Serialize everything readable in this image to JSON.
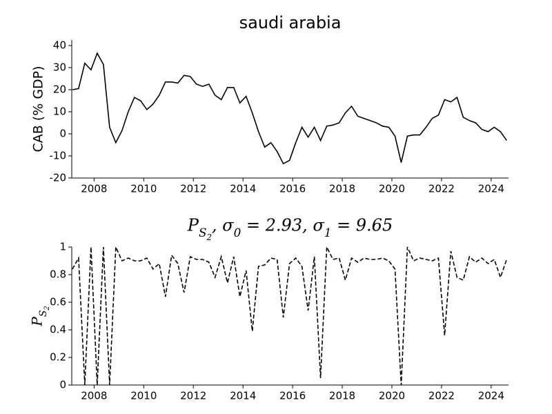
{
  "chart_data": [
    {
      "type": "line",
      "title": "saudi arabia",
      "ylabel": "CAB (% GDP)",
      "x": [
        2007.125,
        2007.375,
        2007.625,
        2007.875,
        2008.125,
        2008.375,
        2008.625,
        2008.875,
        2009.125,
        2009.375,
        2009.625,
        2009.875,
        2010.125,
        2010.375,
        2010.625,
        2010.875,
        2011.125,
        2011.375,
        2011.625,
        2011.875,
        2012.125,
        2012.375,
        2012.625,
        2012.875,
        2013.125,
        2013.375,
        2013.625,
        2013.875,
        2014.125,
        2014.375,
        2014.625,
        2014.875,
        2015.125,
        2015.375,
        2015.625,
        2015.875,
        2016.125,
        2016.375,
        2016.625,
        2016.875,
        2017.125,
        2017.375,
        2017.625,
        2017.875,
        2018.125,
        2018.375,
        2018.625,
        2018.875,
        2019.125,
        2019.375,
        2019.625,
        2019.875,
        2020.125,
        2020.375,
        2020.625,
        2020.875,
        2021.125,
        2021.375,
        2021.625,
        2021.875,
        2022.125,
        2022.375,
        2022.625,
        2022.875,
        2023.125,
        2023.375,
        2023.625,
        2023.875,
        2024.125,
        2024.375,
        2024.625
      ],
      "series": [
        {
          "color": "#000000",
          "linestyle": "solid",
          "values": [
            20,
            20.5,
            32,
            29,
            36.5,
            31.5,
            3,
            -4,
            1.5,
            10,
            16.5,
            15,
            11,
            13.5,
            17.5,
            23.5,
            23.5,
            23,
            26.5,
            26,
            22.5,
            21.5,
            22.5,
            17.5,
            15.5,
            21,
            21,
            14,
            17,
            9.5,
            1,
            -6,
            -4,
            -8,
            -13.5,
            -12,
            -4,
            3,
            -1.5,
            3,
            -3,
            3.5,
            4,
            5,
            9.5,
            12.5,
            8,
            7,
            6,
            5,
            3.5,
            3,
            -1,
            -13,
            -1,
            -0.5,
            -0.5,
            3,
            7,
            8.5,
            15.5,
            14.5,
            16.5,
            7.5,
            6,
            5,
            2,
            1,
            3,
            1,
            -3
          ]
        }
      ],
      "xlim": [
        2007.1,
        2024.7
      ],
      "xticks": [
        2008,
        2010,
        2012,
        2014,
        2016,
        2018,
        2020,
        2022,
        2024
      ],
      "ylim": [
        -20,
        42.5
      ],
      "yticks": [
        -20,
        -10,
        0,
        10,
        20,
        30,
        40
      ]
    },
    {
      "type": "line",
      "title": "P_{S_2}, σ_0 = 2.93, σ_1 = 9.65",
      "ylabel": "P_{S_2}",
      "x": [
        2007.125,
        2007.375,
        2007.625,
        2007.875,
        2008.125,
        2008.375,
        2008.625,
        2008.875,
        2009.125,
        2009.375,
        2009.625,
        2009.875,
        2010.125,
        2010.375,
        2010.625,
        2010.875,
        2011.125,
        2011.375,
        2011.625,
        2011.875,
        2012.125,
        2012.375,
        2012.625,
        2012.875,
        2013.125,
        2013.375,
        2013.625,
        2013.875,
        2014.125,
        2014.375,
        2014.625,
        2014.875,
        2015.125,
        2015.375,
        2015.625,
        2015.875,
        2016.125,
        2016.375,
        2016.625,
        2016.875,
        2017.125,
        2017.375,
        2017.625,
        2017.875,
        2018.125,
        2018.375,
        2018.625,
        2018.875,
        2019.125,
        2019.375,
        2019.625,
        2019.875,
        2020.125,
        2020.375,
        2020.625,
        2020.875,
        2021.125,
        2021.375,
        2021.625,
        2021.875,
        2022.125,
        2022.375,
        2022.625,
        2022.875,
        2023.125,
        2023.375,
        2023.625,
        2023.875,
        2024.125,
        2024.375,
        2024.625
      ],
      "series": [
        {
          "color": "#000000",
          "linestyle": "dashed",
          "values": [
            0.84,
            0.92,
            0,
            1,
            0,
            1,
            0,
            1,
            0.9,
            0.92,
            0.9,
            0.9,
            0.92,
            0.84,
            0.88,
            0.64,
            0.94,
            0.88,
            0.67,
            0.93,
            0.91,
            0.91,
            0.89,
            0.78,
            0.93,
            0.74,
            0.93,
            0.64,
            0.83,
            0.39,
            0.86,
            0.87,
            0.92,
            0.91,
            0.49,
            0.88,
            0.92,
            0.86,
            0.54,
            0.93,
            0.05,
            1,
            0.91,
            0.92,
            0.76,
            0.92,
            0.89,
            0.92,
            0.91,
            0.91,
            0.92,
            0.9,
            0.84,
            0,
            1,
            0.9,
            0.92,
            0.91,
            0.9,
            0.92,
            0.36,
            0.97,
            0.78,
            0.76,
            0.93,
            0.89,
            0.92,
            0.88,
            0.91,
            0.78,
            0.91
          ]
        }
      ],
      "xlim": [
        2007.1,
        2024.7
      ],
      "xticks": [
        2008,
        2010,
        2012,
        2014,
        2016,
        2018,
        2020,
        2022,
        2024
      ],
      "ylim": [
        0,
        1
      ],
      "yticks": [
        0,
        0.2,
        0.4,
        0.6,
        0.8,
        1
      ]
    }
  ]
}
